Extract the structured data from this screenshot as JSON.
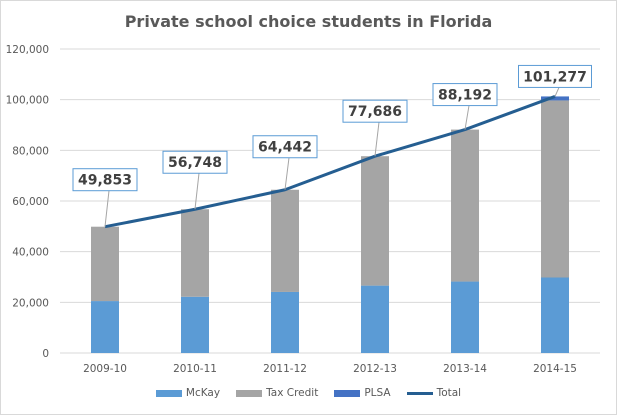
{
  "chart_data": {
    "type": "bar",
    "stacked": true,
    "title": "Private school choice students in Florida",
    "xlabel": "",
    "ylabel": "",
    "ylim": [
      0,
      120000
    ],
    "yticks": [
      0,
      20000,
      40000,
      60000,
      80000,
      100000,
      120000
    ],
    "ytick_labels": [
      "0",
      "20,000",
      "40,000",
      "60,000",
      "80,000",
      "100,000",
      "120,000"
    ],
    "grid": true,
    "legend_position": "bottom",
    "categories": [
      "2009-10",
      "2010-11",
      "2011-12",
      "2012-13",
      "2013-14",
      "2014-15"
    ],
    "series": [
      {
        "name": "McKay",
        "type": "bar",
        "color": "#5b9bd5",
        "values": [
          20500,
          22200,
          24100,
          26600,
          28200,
          29800
        ]
      },
      {
        "name": "Tax Credit",
        "type": "bar",
        "color": "#a5a5a5",
        "values": [
          29353,
          34548,
          40342,
          51086,
          59992,
          69900
        ]
      },
      {
        "name": "PLSA",
        "type": "bar",
        "color": "#4472c4",
        "values": [
          0,
          0,
          0,
          0,
          0,
          1577
        ]
      },
      {
        "name": "Total",
        "type": "line",
        "color": "#255e91",
        "values": [
          49853,
          56748,
          64442,
          77686,
          88192,
          101277
        ]
      }
    ],
    "data_labels": [
      "49,853",
      "56,748",
      "64,442",
      "77,686",
      "88,192",
      "101,277"
    ]
  }
}
